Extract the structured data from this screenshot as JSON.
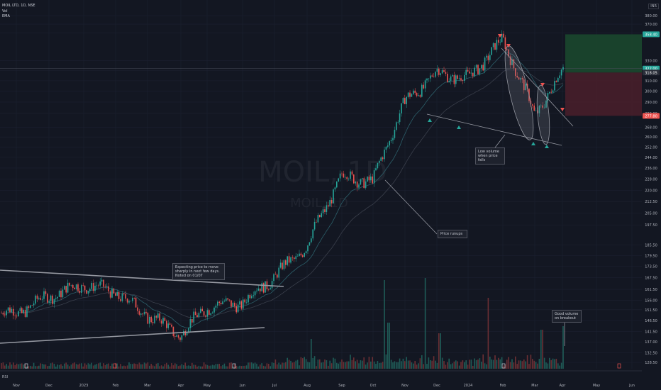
{
  "header": {
    "symbol": "MOIL LTD, 1D, NSE",
    "volume_label": "Vol",
    "ema_label": "EMA",
    "currency": "INR",
    "rsi_label": "RSI"
  },
  "watermark": {
    "symbol": "MOIL, 1D",
    "sub": "MOIL, 1D"
  },
  "annotations": {
    "expecting": [
      "Expecting price to move",
      "sharply in next few days.",
      "Noted on 01/07"
    ],
    "low_volume": [
      "Low volume",
      "when price",
      "falls"
    ],
    "price_runups": [
      "Price runups"
    ],
    "good_volume": [
      "Good volume",
      "on breakout"
    ]
  },
  "colors": {
    "up": "#26a69a",
    "down": "#ef5350",
    "background": "#131722",
    "target_zone": "#1b4a2e",
    "stop_zone": "#4a1f2a",
    "trendline": "#9598a1"
  },
  "chart_data": {
    "type": "candlestick",
    "title": "MOIL LTD, 1D, NSE",
    "y_ticks": [
      380.0,
      370.0,
      360.0,
      330.0,
      320.0,
      310.0,
      300.0,
      290.0,
      280.0,
      268.0,
      260.0,
      252.0,
      244.0,
      236.0,
      228.0,
      220.0,
      212.5,
      205.0,
      197.5,
      185.5,
      179.5,
      173.5,
      167.5,
      161.5,
      156.0,
      151.5,
      146.5,
      141.5,
      137.0,
      132.5,
      128.5
    ],
    "y_tick_labels": [
      "380.00",
      "370.00",
      "360.00",
      "330.00",
      "320.00",
      "310.00",
      "300.00",
      "290.00",
      "280.00",
      "268.00",
      "260.00",
      "252.00",
      "244.00",
      "236.00",
      "228.00",
      "220.00",
      "212.50",
      "205.00",
      "197.50",
      "185.50",
      "179.50",
      "173.50",
      "167.50",
      "161.50",
      "156.00",
      "151.50",
      "146.50",
      "141.50",
      "137.00",
      "132.50",
      "128.50"
    ],
    "x_labels": [
      "Nov",
      "Dec",
      "2023",
      "Feb",
      "Mar",
      "Apr",
      "May",
      "Jun",
      "Jul",
      "Aug",
      "Sep",
      "Oct",
      "Nov",
      "Dec",
      "2024",
      "Feb",
      "Mar",
      "Apr",
      "May",
      "Jun"
    ],
    "y_scale": "log",
    "ylim": [
      126,
      392
    ],
    "price_badges": [
      {
        "label": "358.40",
        "value": 358.4,
        "kind": "target"
      },
      {
        "label": "322.00",
        "value": 322.0,
        "kind": "last"
      },
      {
        "label": "318.05",
        "value": 318.05,
        "kind": "entry"
      },
      {
        "label": "277.80",
        "value": 277.8,
        "kind": "stop"
      }
    ],
    "price_anchors": [
      {
        "x": "Nov",
        "close": 150
      },
      {
        "x": "Dec",
        "close": 158
      },
      {
        "x": "2023",
        "close": 164
      },
      {
        "x": "Feb",
        "close": 160
      },
      {
        "x": "Mar",
        "close": 149
      },
      {
        "x": "Apr",
        "close": 140
      },
      {
        "x": "May",
        "close": 153
      },
      {
        "x": "Jun",
        "close": 155
      },
      {
        "x": "Jul",
        "close": 168
      },
      {
        "x": "Aug",
        "close": 185
      },
      {
        "x": "Sep",
        "close": 230
      },
      {
        "x": "Oct",
        "close": 226
      },
      {
        "x": "Nov",
        "close": 290
      },
      {
        "x": "Dec",
        "close": 318
      },
      {
        "x": "2024",
        "close": 312
      },
      {
        "x": "Feb",
        "close": 352
      },
      {
        "x": "Mar",
        "close": 278
      },
      {
        "x": "Apr",
        "close": 322
      }
    ],
    "position": {
      "entry": 318.05,
      "target": 358.4,
      "stop": 277.8,
      "type": "long"
    },
    "series": [
      {
        "name": "Vol"
      },
      {
        "name": "EMA"
      },
      {
        "name": "RSI"
      }
    ]
  }
}
